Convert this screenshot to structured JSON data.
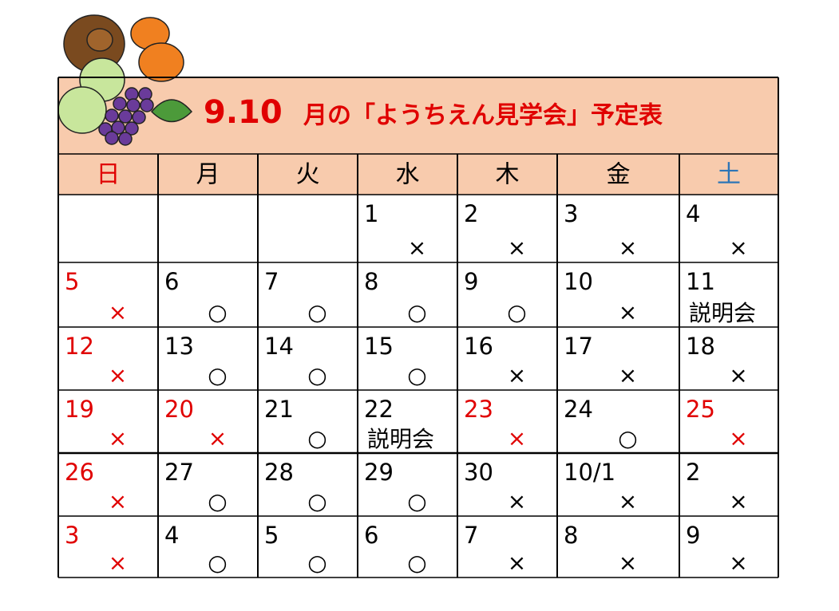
{
  "header": {
    "title": [
      "9.10",
      "月の「ようちえん見学会」予定表"
    ]
  },
  "calendar": {
    "weekdays": [
      "日",
      "月",
      "火",
      "水",
      "木",
      "金",
      "土"
    ],
    "weekday_colors": [
      "#e00000",
      "#000000",
      "#000000",
      "#000000",
      "#000000",
      "#000000",
      "#2e75b6"
    ],
    "rows": [
      [
        null,
        null,
        null,
        {
          "day": "1",
          "mark": "×"
        },
        {
          "day": "2",
          "mark": "×"
        },
        {
          "day": "3",
          "mark": "×"
        },
        {
          "day": "4",
          "mark": "×"
        }
      ],
      [
        {
          "day": "5",
          "mark": "×",
          "color": "#e00000"
        },
        {
          "day": "6",
          "mark": "○"
        },
        {
          "day": "7",
          "mark": "○"
        },
        {
          "day": "8",
          "mark": "○"
        },
        {
          "day": "9",
          "mark": "○"
        },
        {
          "day": "10",
          "mark": "×"
        },
        {
          "day": "11",
          "note": "説明会"
        }
      ],
      [
        {
          "day": "12",
          "mark": "×",
          "color": "#e00000"
        },
        {
          "day": "13",
          "mark": "○"
        },
        {
          "day": "14",
          "mark": "○"
        },
        {
          "day": "15",
          "mark": "○"
        },
        {
          "day": "16",
          "mark": "×"
        },
        {
          "day": "17",
          "mark": "×"
        },
        {
          "day": "18",
          "mark": "×"
        }
      ],
      [
        {
          "day": "19",
          "mark": "×",
          "color": "#e00000"
        },
        {
          "day": "20",
          "mark": "×",
          "color": "#e00000"
        },
        {
          "day": "21",
          "mark": "○"
        },
        {
          "day": "22",
          "note": "説明会"
        },
        {
          "day": "23",
          "mark": "×",
          "color": "#e00000"
        },
        {
          "day": "24",
          "mark": "○"
        },
        {
          "day": "25",
          "mark": "×",
          "color": "#e00000"
        }
      ],
      [
        {
          "day": "26",
          "mark": "×",
          "color": "#e00000"
        },
        {
          "day": "27",
          "mark": "○"
        },
        {
          "day": "28",
          "mark": "○"
        },
        {
          "day": "29",
          "mark": "○"
        },
        {
          "day": "30",
          "mark": "×"
        },
        {
          "day": "10/1",
          "mark": "×"
        },
        {
          "day": "2",
          "mark": "×"
        }
      ],
      [
        {
          "day": "3",
          "mark": "×",
          "color": "#e00000"
        },
        {
          "day": "4",
          "mark": "○"
        },
        {
          "day": "5",
          "mark": "○"
        },
        {
          "day": "6",
          "mark": "○"
        },
        {
          "day": "7",
          "mark": "×"
        },
        {
          "day": "8",
          "mark": "×"
        },
        {
          "day": "9",
          "mark": "×"
        }
      ]
    ]
  }
}
